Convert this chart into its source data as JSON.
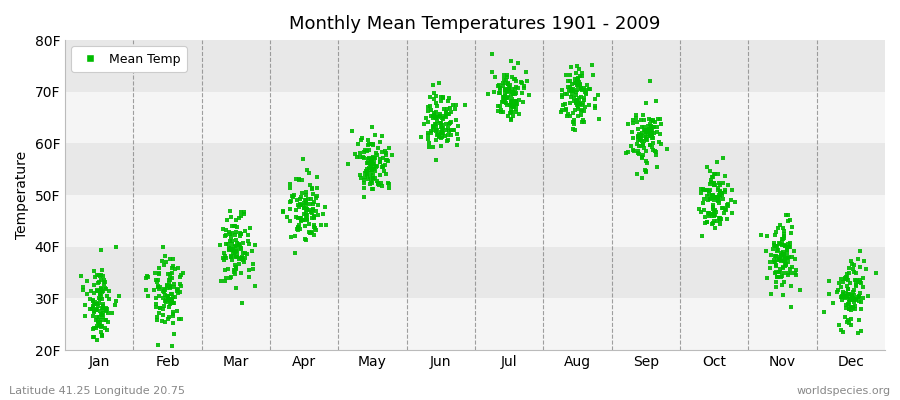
{
  "title": "Monthly Mean Temperatures 1901 - 2009",
  "ylabel": "Temperature",
  "footnote_left": "Latitude 41.25 Longitude 20.75",
  "footnote_right": "worldspecies.org",
  "legend_label": "Mean Temp",
  "dot_color": "#00bb00",
  "background_color": "#f5f5f5",
  "band_light": "#f5f5f5",
  "band_dark": "#e8e8e8",
  "ylim": [
    20,
    80
  ],
  "yticks": [
    20,
    30,
    40,
    50,
    60,
    70,
    80
  ],
  "ytick_labels": [
    "20F",
    "30F",
    "40F",
    "50F",
    "60F",
    "70F",
    "80F"
  ],
  "months": [
    "Jan",
    "Feb",
    "Mar",
    "Apr",
    "May",
    "Jun",
    "Jul",
    "Aug",
    "Sep",
    "Oct",
    "Nov",
    "Dec"
  ],
  "num_years": 109,
  "seed": 42,
  "monthly_mean_F": [
    29.0,
    31.0,
    39.0,
    47.5,
    55.5,
    64.0,
    69.5,
    69.0,
    60.5,
    49.0,
    38.5,
    31.0
  ],
  "monthly_std_F": [
    3.5,
    3.5,
    3.5,
    3.0,
    3.0,
    2.8,
    2.5,
    2.8,
    3.0,
    3.0,
    3.5,
    3.5
  ]
}
